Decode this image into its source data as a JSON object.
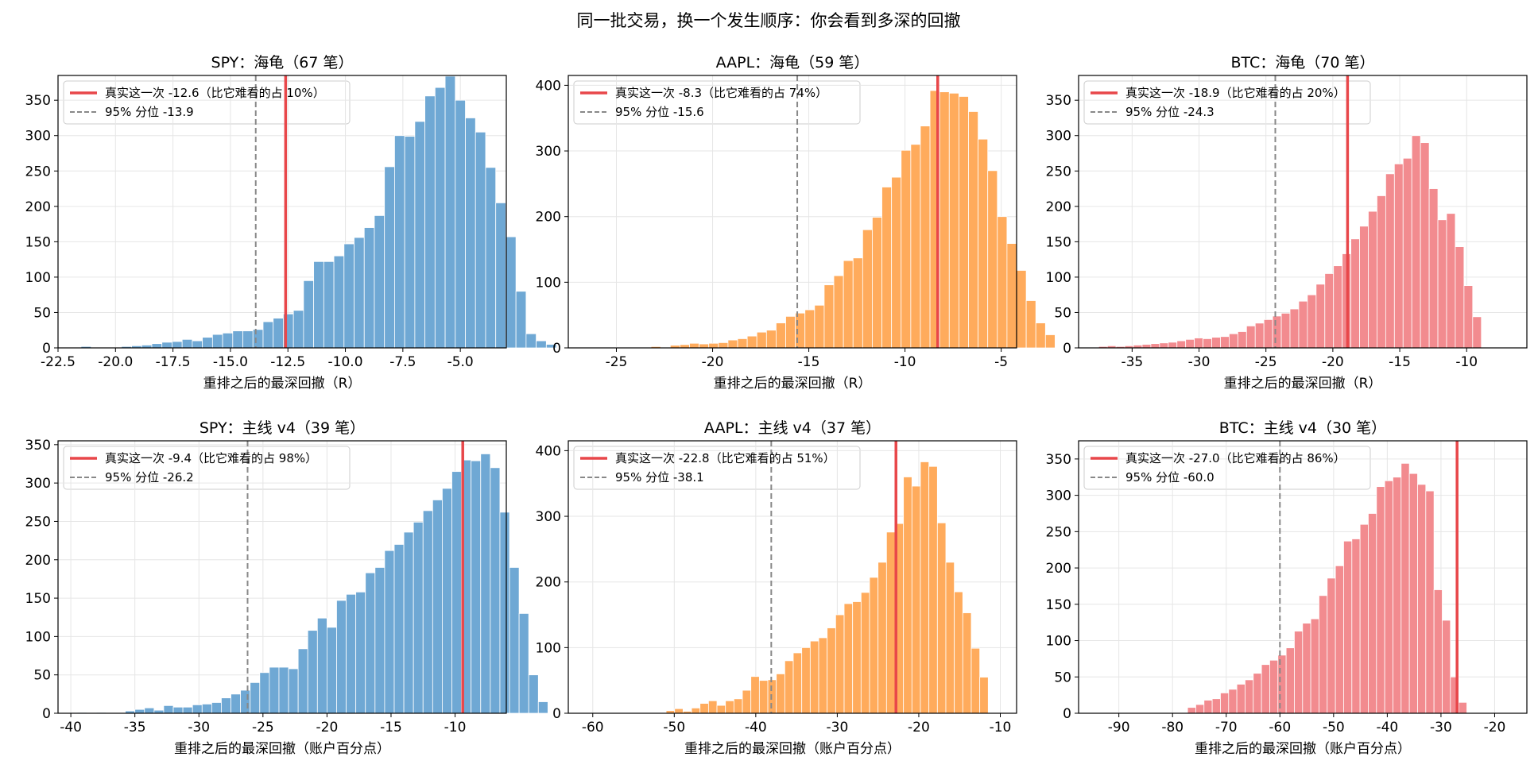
{
  "figure": {
    "title": "同一批交易，换一个发生顺序：你会看到多深的回撤"
  },
  "colors": {
    "SPY": "#6fa8d4",
    "AAPL": "#ffab5c",
    "BTC": "#f28b8f",
    "actual_line": "#e8474a",
    "pct_line": "#888888"
  },
  "chart_data": [
    {
      "type": "histogram",
      "asset": "SPY",
      "title": "SPY：海龟（67 笔）",
      "xlabel": "重排之后的最深回撤（R）",
      "xlim": [
        -22.5,
        -3.0
      ],
      "ylim": [
        0,
        385
      ],
      "xticks": [
        -22.5,
        -20.0,
        -17.5,
        -15.0,
        -12.5,
        -10.0,
        -7.5,
        -5.0
      ],
      "xtick_labels": [
        "-22.5",
        "-20.0",
        "-17.5",
        "-15.0",
        "-12.5",
        "-10.0",
        "-7.5",
        "-5.0"
      ],
      "yticks": [
        0,
        50,
        100,
        150,
        200,
        250,
        300,
        350
      ],
      "bin_start": -21.5,
      "bin_width": 0.44,
      "counts": [
        2,
        0,
        1,
        0,
        2,
        3,
        4,
        6,
        8,
        9,
        12,
        10,
        15,
        19,
        21,
        24,
        24,
        26,
        37,
        42,
        48,
        53,
        95,
        122,
        122,
        130,
        147,
        156,
        170,
        187,
        256,
        300,
        299,
        320,
        356,
        368,
        384,
        350,
        325,
        305,
        255,
        205,
        157,
        80,
        20,
        10,
        5
      ],
      "actual": {
        "label": "真实这一次 -12.6（比它难看的占 10%）",
        "value": -12.6
      },
      "pct95": {
        "label": "95% 分位 -13.9",
        "value": -13.9
      }
    },
    {
      "type": "histogram",
      "asset": "AAPL",
      "title": "AAPL：海龟（59 笔）",
      "xlabel": "重排之后的最深回撤（R）",
      "xlim": [
        -27.5,
        -4.2
      ],
      "ylim": [
        0,
        415
      ],
      "xticks": [
        -25,
        -20,
        -15,
        -10,
        -5
      ],
      "xtick_labels": [
        "-25",
        "-20",
        "-15",
        "-10",
        "-5"
      ],
      "yticks": [
        0,
        100,
        200,
        300,
        400
      ],
      "bin_start": -26.2,
      "bin_width": 0.5,
      "counts": [
        1,
        0,
        1,
        0,
        1,
        0,
        2,
        0,
        4,
        5,
        7,
        6,
        7,
        8,
        12,
        14,
        18,
        24,
        27,
        38,
        48,
        53,
        58,
        65,
        96,
        110,
        133,
        137,
        180,
        199,
        245,
        260,
        301,
        310,
        338,
        392,
        390,
        388,
        383,
        360,
        318,
        270,
        200,
        159,
        118,
        72,
        38,
        20
      ],
      "actual": {
        "label": "真实这一次 -8.3（比它难看的占 74%）",
        "value": -8.3
      },
      "pct95": {
        "label": "95% 分位 -15.6",
        "value": -15.6
      }
    },
    {
      "type": "histogram",
      "asset": "BTC",
      "title": "BTC：海龟（70 笔）",
      "xlabel": "重排之后的最深回撤（R）",
      "xlim": [
        -39.0,
        -5.5
      ],
      "ylim": [
        0,
        385
      ],
      "xticks": [
        -35,
        -30,
        -25,
        -20,
        -15,
        -10
      ],
      "xtick_labels": [
        "-35",
        "-30",
        "-25",
        "-20",
        "-15",
        "-10"
      ],
      "yticks": [
        0,
        50,
        100,
        150,
        200,
        250,
        300,
        350
      ],
      "bin_start": -37.5,
      "bin_width": 0.65,
      "counts": [
        2,
        3,
        2,
        3,
        4,
        5,
        6,
        7,
        8,
        10,
        12,
        14,
        13,
        15,
        16,
        20,
        23,
        31,
        35,
        40,
        45,
        49,
        55,
        66,
        75,
        90,
        105,
        116,
        133,
        154,
        172,
        193,
        215,
        246,
        260,
        268,
        300,
        290,
        225,
        181,
        190,
        143,
        88,
        44
      ],
      "actual": {
        "label": "真实这一次 -18.9（比它难看的占 20%）",
        "value": -18.9
      },
      "pct95": {
        "label": "95% 分位 -24.3",
        "value": -24.3
      }
    },
    {
      "type": "histogram",
      "asset": "SPY",
      "title": "SPY：主线 v4（39 笔）",
      "xlabel": "重排之后的最深回撤（账户百分点）",
      "xlim": [
        -41.0,
        -6.0
      ],
      "ylim": [
        0,
        355
      ],
      "xticks": [
        -40,
        -35,
        -30,
        -25,
        -20,
        -15,
        -10
      ],
      "xtick_labels": [
        "-40",
        "-35",
        "-30",
        "-25",
        "-20",
        "-15",
        "-10"
      ],
      "yticks": [
        0,
        50,
        100,
        150,
        200,
        250,
        300,
        350
      ],
      "bin_start": -39.5,
      "bin_width": 0.75,
      "counts": [
        1,
        0,
        1,
        0,
        0,
        3,
        5,
        7,
        4,
        10,
        8,
        8,
        11,
        12,
        14,
        20,
        25,
        30,
        40,
        53,
        60,
        60,
        58,
        84,
        108,
        124,
        112,
        147,
        155,
        158,
        183,
        190,
        212,
        220,
        236,
        249,
        264,
        278,
        293,
        315,
        330,
        329,
        338,
        320,
        262,
        190,
        130,
        50,
        15
      ],
      "actual": {
        "label": "真实这一次 -9.4（比它难看的占 98%）",
        "value": -9.4
      },
      "pct95": {
        "label": "95% 分位 -26.2",
        "value": -26.2
      }
    },
    {
      "type": "histogram",
      "asset": "AAPL",
      "title": "AAPL：主线 v4（37 笔）",
      "xlabel": "重排之后的最深回撤（账户百分点）",
      "xlim": [
        -63.0,
        -8.0
      ],
      "ylim": [
        0,
        415
      ],
      "xticks": [
        -60,
        -50,
        -40,
        -30,
        -20,
        -10
      ],
      "xtick_labels": [
        "-60",
        "-50",
        "-40",
        "-30",
        "-20",
        "-10"
      ],
      "yticks": [
        0,
        100,
        200,
        300,
        400
      ],
      "bin_start": -51.0,
      "bin_width": 1.04,
      "counts": [
        4,
        7,
        3,
        8,
        15,
        19,
        12,
        19,
        22,
        35,
        56,
        50,
        51,
        60,
        80,
        92,
        100,
        110,
        115,
        130,
        150,
        167,
        170,
        184,
        207,
        230,
        276,
        289,
        360,
        346,
        383,
        376,
        290,
        230,
        185,
        153,
        99,
        55
      ],
      "actual": {
        "label": "真实这一次 -22.8（比它难看的占 51%）",
        "value": -22.8
      },
      "pct95": {
        "label": "95% 分位 -38.1",
        "value": -38.1
      }
    },
    {
      "type": "histogram",
      "asset": "BTC",
      "title": "BTC：主线 v4（30 笔）",
      "xlabel": "重排之后的最深回撤（账户百分点）",
      "xlim": [
        -97.5,
        -14.0
      ],
      "ylim": [
        0,
        375
      ],
      "xticks": [
        -90,
        -80,
        -70,
        -60,
        -50,
        -40,
        -30,
        -20
      ],
      "xtick_labels": [
        "-90",
        "-80",
        "-70",
        "-60",
        "-50",
        "-40",
        "-30",
        "-20"
      ],
      "yticks": [
        0,
        50,
        100,
        150,
        200,
        250,
        300,
        350
      ],
      "bin_start": -77.2,
      "bin_width": 1.53,
      "counts": [
        8,
        12,
        18,
        20,
        28,
        33,
        40,
        46,
        55,
        67,
        73,
        80,
        90,
        113,
        124,
        130,
        162,
        186,
        203,
        237,
        240,
        260,
        275,
        312,
        320,
        325,
        344,
        330,
        315,
        306,
        170,
        128,
        50,
        15
      ],
      "actual": {
        "label": "真实这一次 -27.0（比它难看的占 86%）",
        "value": -27.0
      },
      "pct95": {
        "label": "95% 分位 -60.0",
        "value": -60.0
      }
    }
  ]
}
